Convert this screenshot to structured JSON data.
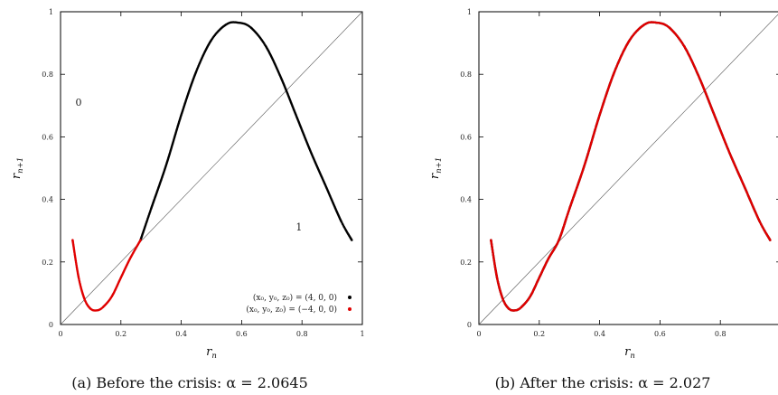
{
  "chart_data": [
    {
      "type": "scatter",
      "xlabel_main": "r",
      "xlabel_sub": "n",
      "ylabel_main": "r",
      "ylabel_sub": "n+1",
      "xlim": [
        0,
        1
      ],
      "ylim": [
        0,
        1
      ],
      "x_ticks": [
        "0",
        "0.2",
        "0.4",
        "0.6",
        "0.8",
        "1"
      ],
      "y_ticks": [
        "0",
        "0.2",
        "0.4",
        "0.6",
        "0.8",
        "1"
      ],
      "caption": "(a) Before the crisis: α = 2.0645",
      "region_labels": [
        {
          "text": "0",
          "x": 0.06,
          "y": 0.7
        },
        {
          "text": "1",
          "x": 0.79,
          "y": 0.3
        }
      ],
      "legend": [
        {
          "label": "(x₀, y₀, z₀) = (4, 0, 0)",
          "color": "#000000"
        },
        {
          "label": "(x₀, y₀, z₀) = (−4, 0, 0)",
          "color": "#e00000"
        }
      ],
      "diagonal": true,
      "series": [
        {
          "color": "#000000",
          "x": [
            0.265,
            0.3,
            0.35,
            0.4,
            0.45,
            0.5,
            0.55,
            0.59,
            0.63,
            0.68,
            0.73,
            0.78,
            0.83,
            0.88,
            0.93,
            0.965
          ],
          "y": [
            0.27,
            0.37,
            0.51,
            0.67,
            0.81,
            0.91,
            0.96,
            0.965,
            0.95,
            0.89,
            0.79,
            0.67,
            0.55,
            0.44,
            0.33,
            0.27
          ]
        },
        {
          "color": "#e00000",
          "x": [
            0.04,
            0.06,
            0.08,
            0.1,
            0.12,
            0.14,
            0.17,
            0.2,
            0.23,
            0.265
          ],
          "y": [
            0.27,
            0.15,
            0.08,
            0.05,
            0.045,
            0.055,
            0.09,
            0.15,
            0.21,
            0.27
          ]
        }
      ]
    },
    {
      "type": "scatter",
      "xlabel_main": "r",
      "xlabel_sub": "n",
      "ylabel_main": "r",
      "ylabel_sub": "n+1",
      "xlim": [
        0,
        1
      ],
      "ylim": [
        0,
        1
      ],
      "x_ticks": [
        "0",
        "0.2",
        "0.4",
        "0.6",
        "0.8"
      ],
      "y_ticks": [
        "0",
        "0.2",
        "0.4",
        "0.6",
        "0.8",
        "1"
      ],
      "caption": "(b) After the crisis: α = 2.027",
      "diagonal": true,
      "series": [
        {
          "color": "#000000",
          "x": [
            0.04,
            0.06,
            0.08,
            0.1,
            0.12,
            0.14,
            0.17,
            0.2,
            0.23,
            0.265,
            0.3,
            0.35,
            0.4,
            0.45,
            0.5,
            0.55,
            0.59,
            0.63,
            0.68,
            0.73,
            0.78,
            0.83,
            0.88,
            0.93,
            0.965
          ],
          "y": [
            0.27,
            0.15,
            0.08,
            0.05,
            0.045,
            0.055,
            0.09,
            0.15,
            0.21,
            0.27,
            0.37,
            0.51,
            0.67,
            0.81,
            0.91,
            0.96,
            0.965,
            0.95,
            0.89,
            0.79,
            0.67,
            0.55,
            0.44,
            0.33,
            0.27
          ]
        },
        {
          "color": "#e00000",
          "x": [
            0.04,
            0.06,
            0.08,
            0.1,
            0.12,
            0.14,
            0.17,
            0.2,
            0.23,
            0.265,
            0.3,
            0.35,
            0.4,
            0.45,
            0.5,
            0.55,
            0.59,
            0.63,
            0.68,
            0.73,
            0.78,
            0.83,
            0.88,
            0.93,
            0.965
          ],
          "y": [
            0.27,
            0.15,
            0.08,
            0.05,
            0.045,
            0.055,
            0.09,
            0.15,
            0.21,
            0.27,
            0.37,
            0.51,
            0.67,
            0.81,
            0.91,
            0.96,
            0.965,
            0.95,
            0.89,
            0.79,
            0.67,
            0.55,
            0.44,
            0.33,
            0.27
          ]
        }
      ]
    }
  ]
}
